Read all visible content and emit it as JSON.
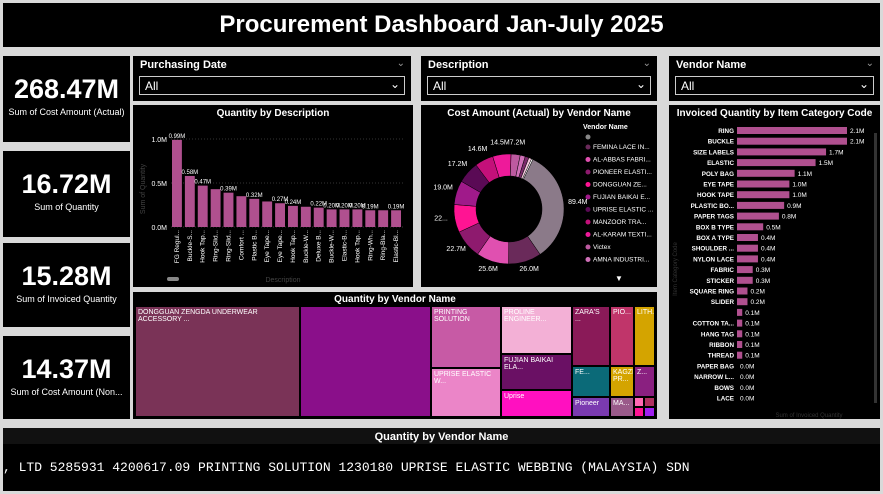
{
  "title": "Procurement Dashboard Jan-July 2025",
  "kpis": [
    {
      "value": "268.47M",
      "label": "Sum of Cost Amount (Actual)"
    },
    {
      "value": "16.72M",
      "label": "Sum of Quantity"
    },
    {
      "value": "15.28M",
      "label": "Sum of Invoiced Quantity"
    },
    {
      "value": "14.37M",
      "label": "Sum of Cost Amount (Non..."
    }
  ],
  "slicers": [
    {
      "title": "Purchasing Date",
      "value": "All"
    },
    {
      "title": "Description",
      "value": "All"
    },
    {
      "title": "Vendor Name",
      "value": "All"
    }
  ],
  "colors": {
    "accent": "#b0508f",
    "purple": "#8a0f8a",
    "pink": "#e8129b"
  },
  "chart_data": [
    {
      "type": "bar",
      "title": "Quantity by Description",
      "xlabel": "Description",
      "ylabel": "Sum of Quantity",
      "ylim": [
        0,
        1000000
      ],
      "yticks": [
        "1.0M",
        "0.5M",
        "0.0M"
      ],
      "categories": [
        "FG Regul...",
        "Buckle-S...",
        "Hook Tap...",
        "Ring-Slid...",
        "Ring-Slid...",
        "Comfort ...",
        "Plastic B...",
        "Eye Tape...",
        "Eye Tape...",
        "Hook Tap...",
        "Buckle-W...",
        "Deluxe B...",
        "Buckle-W...",
        "Elastic-B...",
        "Hook Tap...",
        "Ring-Wh...",
        "Ring-Bla...",
        "Elastic-Bl..."
      ],
      "values": [
        990000,
        580000,
        470000,
        430000,
        390000,
        350000,
        320000,
        290000,
        270000,
        240000,
        230000,
        220000,
        200000,
        200000,
        200000,
        190000,
        190000,
        190000
      ],
      "labels": [
        "0.99M",
        "0.58M",
        "0.47M",
        "",
        "0.39M",
        "",
        "0.32M",
        "",
        "0.27M",
        "0.24M",
        "",
        "0.22M",
        "0.20M",
        "0.20M",
        "0.20M",
        "0.19M",
        "",
        "0.19M"
      ]
    },
    {
      "type": "pie",
      "title": "Cost Amount (Actual) by Vendor Name",
      "legend_title": "Vendor Name",
      "values": [
        89.4,
        26.0,
        25.6,
        22.7,
        22.0,
        19.0,
        17.2,
        14.6,
        14.5,
        7.2,
        4.0,
        3.0,
        2.2,
        1.2
      ],
      "labels": [
        "89.4M",
        "26.0M",
        "25.6M",
        "22.7M",
        "22...",
        "19.0M",
        "17.2M",
        "14.6M",
        "14.5M",
        "7.2M",
        "",
        "",
        "",
        ""
      ],
      "colors": [
        "#8b7a89",
        "#6a2a5a",
        "#e050b0",
        "#8e1a6e",
        "#ff1493",
        "#a01a8a",
        "#5a0a55",
        "#c4107a",
        "#ee1a9a",
        "#bd5aa0",
        "#d070b8",
        "#7a2a6a",
        "#f5c6dd",
        "#ffffff"
      ],
      "legend": [
        "FEMINA LACE IN...",
        "AL-ABBAS FABRI...",
        "PIONEER ELASTI...",
        "DONGGUAN ZE...",
        "FUJIAN BAIKAI E...",
        "UPRISE ELASTIC ...",
        "MANZOOR TRA...",
        "AL-KARAM TEXTI...",
        "Victex",
        "AMNA INDUSTRI..."
      ]
    },
    {
      "type": "bar",
      "orientation": "horizontal",
      "title": "Invoiced Quantity by Item Category Code",
      "xlabel": "Sum of Invoiced Quantity",
      "ylabel": "Item Category Code",
      "categories": [
        "RING",
        "BUCKLE",
        "SIZE LABELS",
        "ELASTIC",
        "POLY BAG",
        "EYE TAPE",
        "HOOK TAPE",
        "PLASTIC BO...",
        "PAPER TAGS",
        "BOX B TYPE",
        "BOX A TYPE",
        "SHOULDER ...",
        "NYLON LACE",
        "FABRIC",
        "STICKER",
        "SQUARE RING",
        "SLIDER",
        "",
        "COTTON TA...",
        "HANG TAG",
        "RIBBON",
        "THREAD",
        "PAPER BAG",
        "NARROW L...",
        "BOWS",
        "LACE"
      ],
      "values": [
        2.1,
        2.1,
        1.7,
        1.5,
        1.1,
        1.0,
        1.0,
        0.9,
        0.8,
        0.5,
        0.4,
        0.4,
        0.4,
        0.3,
        0.3,
        0.2,
        0.2,
        0.1,
        0.1,
        0.1,
        0.1,
        0.1,
        0.0,
        0.0,
        0.0,
        0.0
      ],
      "labels": [
        "2.1M",
        "2.1M",
        "1.7M",
        "1.5M",
        "1.1M",
        "1.0M",
        "1.0M",
        "0.9M",
        "0.8M",
        "0.5M",
        "0.4M",
        "0.4M",
        "0.4M",
        "0.3M",
        "0.3M",
        "0.2M",
        "0.2M",
        "0.1M",
        "0.1M",
        "0.1M",
        "0.1M",
        "0.1M",
        "0.0M",
        "0.0M",
        "0.0M",
        "0.0M"
      ]
    },
    {
      "type": "treemap",
      "title": "Quantity by Vendor Name",
      "labels": [
        "DONGGUAN ZENGDA UNDERWEAR ACCESSORY ...",
        "",
        "PRINTING SOLUTION",
        "UPRISE ELASTIC W...",
        "PROLINE ENGINEER...",
        "FUJIAN BAIKAI ELA...",
        "Uprise",
        "ZARA'S ...",
        "PIO...",
        "FE...",
        "Pioneer",
        "KAGZI PR...",
        "LITH...",
        "Z...",
        "MA..."
      ]
    }
  ],
  "ticker": {
    "title": "Quantity by Vendor Name",
    "text": ", LTD 5285931    4200617.09    PRINTING SOLUTION 1230180    UPRISE ELASTIC WEBBING (MALAYSIA) SDN"
  }
}
